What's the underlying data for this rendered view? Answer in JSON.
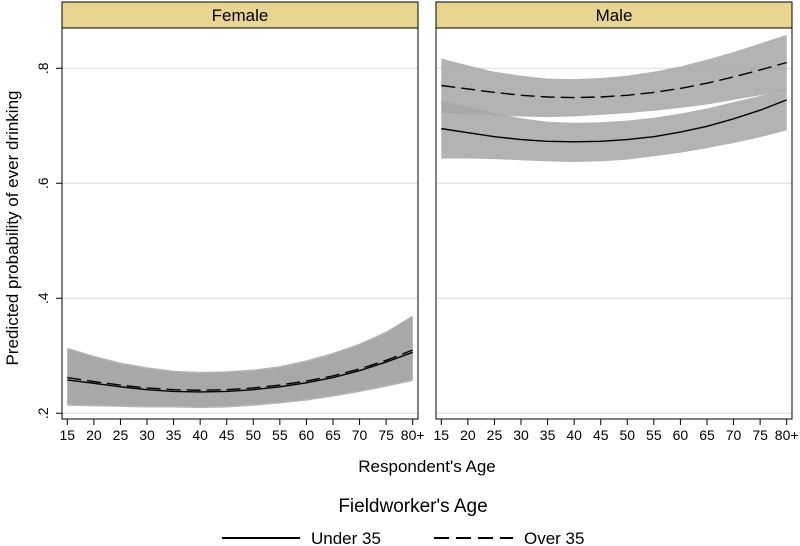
{
  "chart_data": {
    "type": "line",
    "panels": [
      "Female",
      "Male"
    ],
    "xlabel": "Respondent's Age",
    "ylabel": "Predicted probability of ever drinking",
    "x_ticks": [
      "15",
      "20",
      "25",
      "30",
      "35",
      "40",
      "45",
      "50",
      "55",
      "60",
      "65",
      "70",
      "75",
      "80+"
    ],
    "x_values": [
      15,
      20,
      25,
      30,
      35,
      40,
      45,
      50,
      55,
      60,
      65,
      70,
      75,
      80
    ],
    "xlim": [
      14,
      81
    ],
    "y_ticks": [
      ".2",
      ".4",
      ".6",
      ".8"
    ],
    "y_tick_values": [
      0.2,
      0.4,
      0.6,
      0.8
    ],
    "ylim": [
      0.19,
      0.87
    ],
    "grid": "horizontal",
    "legend_title": "Fieldworker's Age",
    "legend_position": "bottom",
    "series": [
      {
        "name": "Under 35",
        "panel": "Female",
        "line_style": "solid",
        "values": [
          0.258,
          0.252,
          0.246,
          0.241,
          0.238,
          0.237,
          0.238,
          0.241,
          0.246,
          0.253,
          0.262,
          0.274,
          0.289,
          0.306
        ],
        "ci_lower": [
          0.213,
          0.212,
          0.211,
          0.21,
          0.21,
          0.209,
          0.21,
          0.213,
          0.217,
          0.222,
          0.229,
          0.237,
          0.246,
          0.256
        ],
        "ci_upper": [
          0.311,
          0.297,
          0.285,
          0.277,
          0.271,
          0.269,
          0.27,
          0.273,
          0.279,
          0.289,
          0.302,
          0.318,
          0.339,
          0.368
        ]
      },
      {
        "name": "Over 35",
        "panel": "Female",
        "line_style": "dashed",
        "values": [
          0.262,
          0.255,
          0.249,
          0.244,
          0.241,
          0.24,
          0.241,
          0.244,
          0.249,
          0.256,
          0.265,
          0.277,
          0.292,
          0.31
        ],
        "ci_lower": [
          0.216,
          0.215,
          0.214,
          0.213,
          0.213,
          0.212,
          0.213,
          0.216,
          0.22,
          0.225,
          0.232,
          0.24,
          0.249,
          0.259
        ],
        "ci_upper": [
          0.314,
          0.3,
          0.288,
          0.28,
          0.274,
          0.272,
          0.273,
          0.276,
          0.282,
          0.292,
          0.305,
          0.321,
          0.342,
          0.37
        ]
      },
      {
        "name": "Under 35",
        "panel": "Male",
        "line_style": "solid",
        "values": [
          0.695,
          0.688,
          0.681,
          0.676,
          0.673,
          0.672,
          0.673,
          0.676,
          0.681,
          0.689,
          0.699,
          0.712,
          0.727,
          0.745
        ],
        "ci_lower": [
          0.643,
          0.643,
          0.642,
          0.64,
          0.638,
          0.637,
          0.638,
          0.641,
          0.647,
          0.653,
          0.661,
          0.67,
          0.68,
          0.692
        ],
        "ci_upper": [
          0.743,
          0.733,
          0.722,
          0.713,
          0.707,
          0.705,
          0.706,
          0.709,
          0.714,
          0.721,
          0.73,
          0.741,
          0.752,
          0.765
        ]
      },
      {
        "name": "Over 35",
        "panel": "Male",
        "line_style": "dashed",
        "values": [
          0.77,
          0.764,
          0.758,
          0.753,
          0.75,
          0.749,
          0.75,
          0.753,
          0.758,
          0.765,
          0.774,
          0.785,
          0.797,
          0.81
        ],
        "ci_lower": [
          0.722,
          0.72,
          0.718,
          0.716,
          0.715,
          0.716,
          0.719,
          0.722,
          0.726,
          0.731,
          0.737,
          0.745,
          0.753,
          0.762
        ],
        "ci_upper": [
          0.817,
          0.805,
          0.794,
          0.787,
          0.782,
          0.781,
          0.783,
          0.787,
          0.794,
          0.803,
          0.815,
          0.828,
          0.843,
          0.858
        ]
      }
    ]
  }
}
